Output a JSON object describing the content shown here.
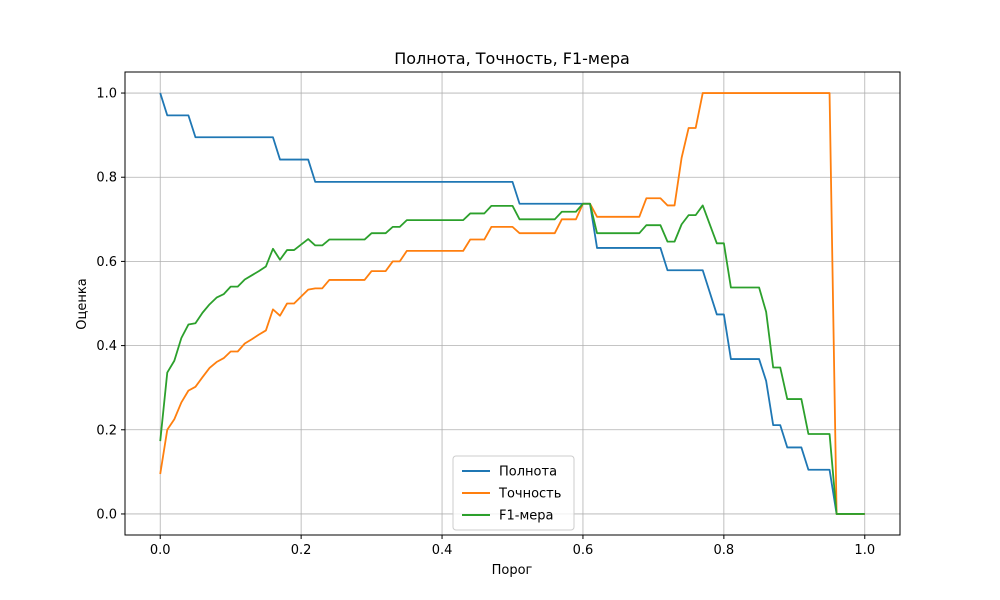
{
  "chart_data": {
    "type": "line",
    "title": "Полнота, Точность, F1-мера",
    "xlabel": "Порог",
    "ylabel": "Оценка",
    "xlim": [
      -0.05,
      1.05
    ],
    "ylim": [
      -0.05,
      1.05
    ],
    "xticks": [
      0.0,
      0.2,
      0.4,
      0.6,
      0.8,
      1.0
    ],
    "xtick_labels": [
      "0.0",
      "0.2",
      "0.4",
      "0.6",
      "0.8",
      "1.0"
    ],
    "yticks": [
      0.0,
      0.2,
      0.4,
      0.6,
      0.8,
      1.0
    ],
    "ytick_labels": [
      "0.0",
      "0.2",
      "0.4",
      "0.6",
      "0.8",
      "1.0"
    ],
    "grid": true,
    "legend_position": "bottom-center",
    "series": [
      {
        "name": "Полнота",
        "color": "#1f77b4",
        "points": [
          [
            0.0,
            1.0
          ],
          [
            0.01,
            0.947
          ],
          [
            0.04,
            0.947
          ],
          [
            0.05,
            0.895
          ],
          [
            0.16,
            0.895
          ],
          [
            0.17,
            0.842
          ],
          [
            0.21,
            0.842
          ],
          [
            0.22,
            0.789
          ],
          [
            0.5,
            0.789
          ],
          [
            0.51,
            0.737
          ],
          [
            0.61,
            0.737
          ],
          [
            0.62,
            0.632
          ],
          [
            0.71,
            0.632
          ],
          [
            0.72,
            0.579
          ],
          [
            0.77,
            0.579
          ],
          [
            0.79,
            0.474
          ],
          [
            0.8,
            0.474
          ],
          [
            0.81,
            0.368
          ],
          [
            0.85,
            0.368
          ],
          [
            0.86,
            0.316
          ],
          [
            0.87,
            0.211
          ],
          [
            0.88,
            0.211
          ],
          [
            0.89,
            0.158
          ],
          [
            0.91,
            0.158
          ],
          [
            0.92,
            0.105
          ],
          [
            0.95,
            0.105
          ],
          [
            0.96,
            0.0
          ],
          [
            1.0,
            0.0
          ]
        ]
      },
      {
        "name": "Точность",
        "color": "#ff7f0e",
        "points": [
          [
            0.0,
            0.095
          ],
          [
            0.01,
            0.2
          ],
          [
            0.02,
            0.225
          ],
          [
            0.03,
            0.265
          ],
          [
            0.04,
            0.293
          ],
          [
            0.05,
            0.302
          ],
          [
            0.06,
            0.325
          ],
          [
            0.07,
            0.347
          ],
          [
            0.08,
            0.361
          ],
          [
            0.09,
            0.37
          ],
          [
            0.1,
            0.386
          ],
          [
            0.11,
            0.386
          ],
          [
            0.12,
            0.405
          ],
          [
            0.13,
            0.415
          ],
          [
            0.14,
            0.426
          ],
          [
            0.15,
            0.436
          ],
          [
            0.16,
            0.486
          ],
          [
            0.17,
            0.471
          ],
          [
            0.18,
            0.5
          ],
          [
            0.19,
            0.5
          ],
          [
            0.21,
            0.533
          ],
          [
            0.22,
            0.536
          ],
          [
            0.23,
            0.536
          ],
          [
            0.24,
            0.556
          ],
          [
            0.29,
            0.556
          ],
          [
            0.3,
            0.577
          ],
          [
            0.32,
            0.577
          ],
          [
            0.33,
            0.6
          ],
          [
            0.34,
            0.6
          ],
          [
            0.35,
            0.625
          ],
          [
            0.43,
            0.625
          ],
          [
            0.44,
            0.652
          ],
          [
            0.46,
            0.652
          ],
          [
            0.47,
            0.682
          ],
          [
            0.5,
            0.682
          ],
          [
            0.51,
            0.667
          ],
          [
            0.56,
            0.667
          ],
          [
            0.57,
            0.7
          ],
          [
            0.59,
            0.7
          ],
          [
            0.6,
            0.737
          ],
          [
            0.61,
            0.737
          ],
          [
            0.62,
            0.706
          ],
          [
            0.68,
            0.706
          ],
          [
            0.69,
            0.75
          ],
          [
            0.71,
            0.75
          ],
          [
            0.72,
            0.733
          ],
          [
            0.73,
            0.733
          ],
          [
            0.74,
            0.846
          ],
          [
            0.75,
            0.917
          ],
          [
            0.76,
            0.917
          ],
          [
            0.77,
            1.0
          ],
          [
            0.95,
            1.0
          ],
          [
            0.96,
            0.0
          ],
          [
            1.0,
            0.0
          ]
        ]
      },
      {
        "name": "F1-мера",
        "color": "#2ca02c",
        "points": [
          [
            0.0,
            0.173
          ],
          [
            0.01,
            0.336
          ],
          [
            0.02,
            0.364
          ],
          [
            0.03,
            0.418
          ],
          [
            0.04,
            0.45
          ],
          [
            0.05,
            0.453
          ],
          [
            0.06,
            0.478
          ],
          [
            0.07,
            0.498
          ],
          [
            0.08,
            0.514
          ],
          [
            0.09,
            0.522
          ],
          [
            0.1,
            0.54
          ],
          [
            0.11,
            0.54
          ],
          [
            0.12,
            0.557
          ],
          [
            0.13,
            0.567
          ],
          [
            0.14,
            0.577
          ],
          [
            0.15,
            0.588
          ],
          [
            0.16,
            0.63
          ],
          [
            0.17,
            0.604
          ],
          [
            0.18,
            0.627
          ],
          [
            0.19,
            0.627
          ],
          [
            0.21,
            0.653
          ],
          [
            0.22,
            0.638
          ],
          [
            0.23,
            0.638
          ],
          [
            0.24,
            0.652
          ],
          [
            0.29,
            0.652
          ],
          [
            0.3,
            0.667
          ],
          [
            0.32,
            0.667
          ],
          [
            0.33,
            0.682
          ],
          [
            0.34,
            0.682
          ],
          [
            0.35,
            0.698
          ],
          [
            0.43,
            0.698
          ],
          [
            0.44,
            0.714
          ],
          [
            0.46,
            0.714
          ],
          [
            0.47,
            0.732
          ],
          [
            0.5,
            0.732
          ],
          [
            0.51,
            0.7
          ],
          [
            0.56,
            0.7
          ],
          [
            0.57,
            0.718
          ],
          [
            0.59,
            0.718
          ],
          [
            0.6,
            0.737
          ],
          [
            0.61,
            0.737
          ],
          [
            0.62,
            0.667
          ],
          [
            0.68,
            0.667
          ],
          [
            0.69,
            0.686
          ],
          [
            0.71,
            0.686
          ],
          [
            0.72,
            0.647
          ],
          [
            0.73,
            0.647
          ],
          [
            0.74,
            0.688
          ],
          [
            0.75,
            0.71
          ],
          [
            0.76,
            0.71
          ],
          [
            0.77,
            0.733
          ],
          [
            0.79,
            0.643
          ],
          [
            0.8,
            0.643
          ],
          [
            0.81,
            0.538
          ],
          [
            0.85,
            0.538
          ],
          [
            0.86,
            0.48
          ],
          [
            0.87,
            0.348
          ],
          [
            0.88,
            0.348
          ],
          [
            0.89,
            0.273
          ],
          [
            0.91,
            0.273
          ],
          [
            0.92,
            0.19
          ],
          [
            0.95,
            0.19
          ],
          [
            0.96,
            0.0
          ],
          [
            1.0,
            0.0
          ]
        ]
      }
    ]
  }
}
